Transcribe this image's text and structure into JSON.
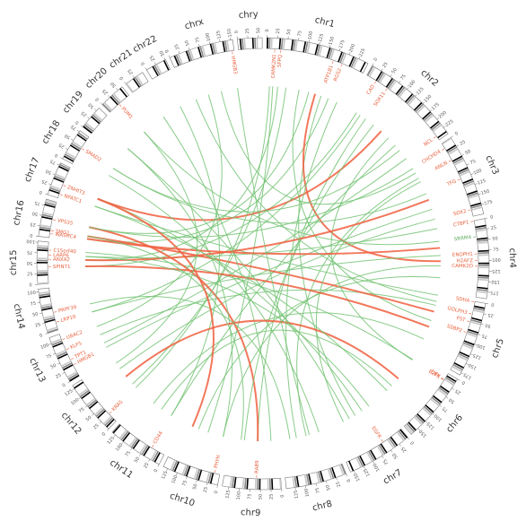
{
  "chart_data": {
    "type": "circos",
    "chromosomes": [
      {
        "name": "chr1",
        "length": 249,
        "ticks": [
          0,
          25,
          50,
          75,
          100,
          125,
          150,
          175,
          200,
          225
        ]
      },
      {
        "name": "chr2",
        "length": 243,
        "ticks": [
          0,
          25,
          50,
          75,
          100,
          125,
          150,
          175,
          200,
          225
        ]
      },
      {
        "name": "chr3",
        "length": 198,
        "ticks": [
          0,
          25,
          50,
          75,
          100,
          125,
          150,
          175
        ]
      },
      {
        "name": "chr4",
        "length": 191,
        "ticks": [
          0,
          25,
          50,
          75,
          100,
          125,
          150,
          175
        ]
      },
      {
        "name": "chr5",
        "length": 181,
        "ticks": [
          0,
          25,
          50,
          75,
          100,
          125,
          150,
          175
        ]
      },
      {
        "name": "chr6",
        "length": 171,
        "ticks": [
          0,
          25,
          50,
          75,
          100,
          125,
          150
        ]
      },
      {
        "name": "chr7",
        "length": 159,
        "ticks": [
          0,
          25,
          50,
          75,
          100,
          125,
          150
        ]
      },
      {
        "name": "chr8",
        "length": 146,
        "ticks": [
          0,
          25,
          50,
          75,
          100,
          125
        ]
      },
      {
        "name": "chr9",
        "length": 141,
        "ticks": [
          0,
          25,
          50,
          75,
          100,
          125
        ]
      },
      {
        "name": "chr10",
        "length": 136,
        "ticks": [
          0,
          25,
          50,
          75,
          100,
          125
        ]
      },
      {
        "name": "chr11",
        "length": 135,
        "ticks": [
          0,
          25,
          50,
          75,
          100,
          125
        ]
      },
      {
        "name": "chr12",
        "length": 134,
        "ticks": [
          0,
          25,
          50,
          75,
          100,
          125
        ]
      },
      {
        "name": "chr13",
        "length": 115,
        "ticks": [
          0,
          25,
          50,
          75,
          100
        ]
      },
      {
        "name": "chr14",
        "length": 107,
        "ticks": [
          0,
          25,
          50,
          75,
          100
        ]
      },
      {
        "name": "chr15",
        "length": 103,
        "ticks": [
          0,
          25,
          50,
          75,
          100
        ]
      },
      {
        "name": "chr16",
        "length": 90,
        "ticks": [
          0,
          25,
          50,
          75
        ]
      },
      {
        "name": "chr17",
        "length": 81,
        "ticks": [
          0,
          25,
          50,
          75
        ]
      },
      {
        "name": "chr18",
        "length": 78,
        "ticks": [
          0,
          25,
          50,
          75
        ]
      },
      {
        "name": "chr19",
        "length": 59,
        "ticks": [
          0,
          25,
          50
        ]
      },
      {
        "name": "chr20",
        "length": 63,
        "ticks": [
          0,
          25,
          50
        ]
      },
      {
        "name": "chr21",
        "length": 48,
        "ticks": [
          0,
          25
        ]
      },
      {
        "name": "chr22",
        "length": 51,
        "ticks": [
          0,
          25,
          50
        ]
      },
      {
        "name": "chrx",
        "length": 155,
        "ticks": [
          0,
          25,
          50,
          75,
          100,
          125,
          150
        ]
      },
      {
        "name": "chry",
        "length": 59,
        "ticks": [
          0,
          25,
          50
        ]
      }
    ],
    "genes": [
      {
        "label": "CAMK2N1",
        "chr": "chr1",
        "pos": 20,
        "color": "#e8603c"
      },
      {
        "label": "SFPQ",
        "chr": "chr1",
        "pos": 35,
        "color": "#e8603c"
      },
      {
        "label": "ATP1B1",
        "chr": "chr1",
        "pos": 169,
        "color": "#e8603c"
      },
      {
        "label": "RGS2",
        "chr": "chr1",
        "pos": 192,
        "color": "#e8603c"
      },
      {
        "label": "CAD",
        "chr": "chr2",
        "pos": 27,
        "color": "#e8603c"
      },
      {
        "label": "SOX11",
        "chr": "chr2",
        "pos": 60,
        "color": "#e8603c"
      },
      {
        "label": "NCL",
        "chr": "chr2",
        "pos": 232,
        "color": "#e8603c"
      },
      {
        "label": "CHCHD4",
        "chr": "chr3",
        "pos": 14,
        "color": "#e8603c"
      },
      {
        "label": "ANLN",
        "chr": "chr3",
        "pos": 48,
        "color": "#e8603c"
      },
      {
        "label": "TFG",
        "chr": "chr3",
        "pos": 100,
        "color": "#e8603c"
      },
      {
        "label": "SOX2",
        "chr": "chr3",
        "pos": 181,
        "color": "#e8603c"
      },
      {
        "label": "CTBP1",
        "chr": "chr4",
        "pos": 1,
        "color": "#e8603c"
      },
      {
        "label": "SRRM4",
        "chr": "chr4",
        "pos": 40,
        "color": "#5aa55a"
      },
      {
        "label": "ENOPH1",
        "chr": "chr4",
        "pos": 83,
        "color": "#e8603c"
      },
      {
        "label": "H2AFZ",
        "chr": "chr4",
        "pos": 100,
        "color": "#e8603c"
      },
      {
        "label": "CAMK2D",
        "chr": "chr4",
        "pos": 114,
        "color": "#e8603c"
      },
      {
        "label": "SDHA",
        "chr": "chr5",
        "pos": 1,
        "color": "#e8603c"
      },
      {
        "label": "GOLPH3",
        "chr": "chr5",
        "pos": 32,
        "color": "#e8603c"
      },
      {
        "label": "SSBP2",
        "chr": "chr5",
        "pos": 80,
        "color": "#e8603c"
      },
      {
        "label": "FST",
        "chr": "chr5",
        "pos": 52,
        "color": "#e8603c"
      },
      {
        "label": "E2F3",
        "chr": "chr6",
        "pos": 20,
        "color": "#e8603c"
      },
      {
        "label": "DEK",
        "chr": "chr6",
        "pos": 18,
        "color": "#e8603c"
      },
      {
        "label": "EGFR",
        "chr": "chr7",
        "pos": 55,
        "color": "#e8603c"
      },
      {
        "label": "RAB9",
        "chr": "chr9",
        "pos": 60,
        "color": "#e8603c"
      },
      {
        "label": "PHYH",
        "chr": "chr10",
        "pos": 13,
        "color": "#e8603c"
      },
      {
        "label": "CD44",
        "chr": "chr11",
        "pos": 35,
        "color": "#e8603c"
      },
      {
        "label": "KRAS",
        "chr": "chr12",
        "pos": 25,
        "color": "#e8603c"
      },
      {
        "label": "HMGB1",
        "chr": "chr13",
        "pos": 31,
        "color": "#e8603c"
      },
      {
        "label": "TPT1",
        "chr": "chr13",
        "pos": 46,
        "color": "#e8603c"
      },
      {
        "label": "KLF5",
        "chr": "chr13",
        "pos": 73,
        "color": "#e8603c"
      },
      {
        "label": "UBAC2",
        "chr": "chr13",
        "pos": 100,
        "color": "#e8603c"
      },
      {
        "label": "LRP10",
        "chr": "chr14",
        "pos": 20,
        "color": "#e8603c"
      },
      {
        "label": "PRPF39",
        "chr": "chr14",
        "pos": 45,
        "color": "#e8603c"
      },
      {
        "label": "SPINT1",
        "chr": "chr15",
        "pos": 41,
        "color": "#e8603c"
      },
      {
        "label": "ANXA2",
        "chr": "chr15",
        "pos": 60,
        "color": "#e8603c"
      },
      {
        "label": "LARP6",
        "chr": "chr15",
        "pos": 71,
        "color": "#e8603c"
      },
      {
        "label": "C15orf40",
        "chr": "chr15",
        "pos": 83,
        "color": "#e8603c"
      },
      {
        "label": "WASHC4",
        "chr": "chr16",
        "pos": 10,
        "color": "#e8603c"
      },
      {
        "label": "SMG1",
        "chr": "chr16",
        "pos": 18,
        "color": "#e8603c"
      },
      {
        "label": "VPS35",
        "chr": "chr16",
        "pos": 46,
        "color": "#e8603c"
      },
      {
        "label": "NFATC1",
        "chr": "chr17",
        "pos": 10,
        "color": "#e8603c"
      },
      {
        "label": "ZNHIT3",
        "chr": "chr17",
        "pos": 34,
        "color": "#e8603c"
      },
      {
        "label": "SMAD2",
        "chr": "chr18",
        "pos": 45,
        "color": "#e8603c"
      },
      {
        "label": "PUM1",
        "chr": "chr20",
        "pos": 30,
        "color": "#e8603c"
      },
      {
        "label": "HMGB3",
        "chr": "chrx",
        "pos": 150,
        "color": "#e8603c"
      }
    ],
    "links": [
      {
        "from": [
          "chr1",
          20
        ],
        "to": [
          "chr10",
          60
        ],
        "color": "#74c374"
      },
      {
        "from": [
          "chr1",
          35
        ],
        "to": [
          "chr15",
          60
        ],
        "color": "#74c374"
      },
      {
        "from": [
          "chr1",
          169
        ],
        "to": [
          "chr7",
          80
        ],
        "color": "#74c374"
      },
      {
        "from": [
          "chr1",
          192
        ],
        "to": [
          "chr16",
          10
        ],
        "color": "#74c374"
      },
      {
        "from": [
          "chr1",
          150
        ],
        "to": [
          "chr4",
          100
        ],
        "color": "#f06040"
      },
      {
        "from": [
          "chr1",
          60
        ],
        "to": [
          "chr12",
          40
        ],
        "color": "#74c374"
      },
      {
        "from": [
          "chr2",
          27
        ],
        "to": [
          "chr15",
          41
        ],
        "color": "#74c374"
      },
      {
        "from": [
          "chr2",
          60
        ],
        "to": [
          "chr9",
          60
        ],
        "color": "#74c374"
      },
      {
        "from": [
          "chr2",
          232
        ],
        "to": [
          "chr13",
          46
        ],
        "color": "#74c374"
      },
      {
        "from": [
          "chr2",
          120
        ],
        "to": [
          "chr17",
          34
        ],
        "color": "#f06040"
      },
      {
        "from": [
          "chr2",
          180
        ],
        "to": [
          "chr11",
          35
        ],
        "color": "#74c374"
      },
      {
        "from": [
          "chr3",
          14
        ],
        "to": [
          "chr16",
          46
        ],
        "color": "#74c374"
      },
      {
        "from": [
          "chr3",
          48
        ],
        "to": [
          "chr8",
          70
        ],
        "color": "#74c374"
      },
      {
        "from": [
          "chr3",
          100
        ],
        "to": [
          "chr18",
          45
        ],
        "color": "#74c374"
      },
      {
        "from": [
          "chr3",
          181
        ],
        "to": [
          "chr12",
          100
        ],
        "color": "#74c374"
      },
      {
        "from": [
          "chr4",
          1
        ],
        "to": [
          "chr15",
          71
        ],
        "color": "#74c374"
      },
      {
        "from": [
          "chr4",
          40
        ],
        "to": [
          "chr20",
          30
        ],
        "color": "#74c374"
      },
      {
        "from": [
          "chr4",
          83
        ],
        "to": [
          "chr14",
          20
        ],
        "color": "#74c374"
      },
      {
        "from": [
          "chr4",
          114
        ],
        "to": [
          "chr10",
          13
        ],
        "color": "#74c374"
      },
      {
        "from": [
          "chr5",
          1
        ],
        "to": [
          "chr17",
          10
        ],
        "color": "#74c374"
      },
      {
        "from": [
          "chr5",
          32
        ],
        "to": [
          "chr13",
          73
        ],
        "color": "#74c374"
      },
      {
        "from": [
          "chr5",
          80
        ],
        "to": [
          "chr1",
          100
        ],
        "color": "#74c374"
      },
      {
        "from": [
          "chr5",
          52
        ],
        "to": [
          "chr16",
          18
        ],
        "color": "#f06040"
      },
      {
        "from": [
          "chr6",
          20
        ],
        "to": [
          "chr2",
          150
        ],
        "color": "#74c374"
      },
      {
        "from": [
          "chr6",
          18
        ],
        "to": [
          "chr15",
          83
        ],
        "color": "#74c374"
      },
      {
        "from": [
          "chr6",
          120
        ],
        "to": [
          "chr11",
          70
        ],
        "color": "#74c374"
      },
      {
        "from": [
          "chr7",
          55
        ],
        "to": [
          "chr17",
          34
        ],
        "color": "#74c374"
      },
      {
        "from": [
          "chr7",
          120
        ],
        "to": [
          "chr3",
          60
        ],
        "color": "#74c374"
      },
      {
        "from": [
          "chr8",
          30
        ],
        "to": [
          "chr18",
          20
        ],
        "color": "#74c374"
      },
      {
        "from": [
          "chr8",
          100
        ],
        "to": [
          "chr1",
          220
        ],
        "color": "#74c374"
      },
      {
        "from": [
          "chr9",
          60
        ],
        "to": [
          "chr16",
          46
        ],
        "color": "#f06040"
      },
      {
        "from": [
          "chr9",
          100
        ],
        "to": [
          "chr2",
          90
        ],
        "color": "#74c374"
      },
      {
        "from": [
          "chr9",
          20
        ],
        "to": [
          "chr21",
          30
        ],
        "color": "#74c374"
      },
      {
        "from": [
          "chr10",
          13
        ],
        "to": [
          "chr19",
          30
        ],
        "color": "#74c374"
      },
      {
        "from": [
          "chr10",
          90
        ],
        "to": [
          "chr4",
          150
        ],
        "color": "#74c374"
      },
      {
        "from": [
          "chr11",
          35
        ],
        "to": [
          "chr22",
          30
        ],
        "color": "#74c374"
      },
      {
        "from": [
          "chr11",
          100
        ],
        "to": [
          "chr5",
          140
        ],
        "color": "#74c374"
      },
      {
        "from": [
          "chr12",
          25
        ],
        "to": [
          "chr1",
          10
        ],
        "color": "#74c374"
      },
      {
        "from": [
          "chr12",
          70
        ],
        "to": [
          "chr6",
          90
        ],
        "color": "#f06040"
      },
      {
        "from": [
          "chr13",
          31
        ],
        "to": [
          "chr3",
          150
        ],
        "color": "#74c374"
      },
      {
        "from": [
          "chr13",
          100
        ],
        "to": [
          "chrx",
          60
        ],
        "color": "#74c374"
      },
      {
        "from": [
          "chr14",
          20
        ],
        "to": [
          "chr2",
          40
        ],
        "color": "#74c374"
      },
      {
        "from": [
          "chr14",
          45
        ],
        "to": [
          "chr8",
          120
        ],
        "color": "#74c374"
      },
      {
        "from": [
          "chr15",
          41
        ],
        "to": [
          "chr5",
          100
        ],
        "color": "#f06040"
      },
      {
        "from": [
          "chr15",
          60
        ],
        "to": [
          "chr3",
          120
        ],
        "color": "#f06040"
      },
      {
        "from": [
          "chr15",
          71
        ],
        "to": [
          "chr7",
          30
        ],
        "color": "#74c374"
      },
      {
        "from": [
          "chr16",
          10
        ],
        "to": [
          "chr4",
          60
        ],
        "color": "#f06040"
      },
      {
        "from": [
          "chr16",
          18
        ],
        "to": [
          "chr9",
          110
        ],
        "color": "#74c374"
      },
      {
        "from": [
          "chr16",
          46
        ],
        "to": [
          "chr1",
          130
        ],
        "color": "#74c374"
      },
      {
        "from": [
          "chr17",
          10
        ],
        "to": [
          "chr6",
          140
        ],
        "color": "#74c374"
      },
      {
        "from": [
          "chr17",
          34
        ],
        "to": [
          "chr10",
          110
        ],
        "color": "#f06040"
      },
      {
        "from": [
          "chr18",
          45
        ],
        "to": [
          "chr2",
          200
        ],
        "color": "#74c374"
      },
      {
        "from": [
          "chr19",
          30
        ],
        "to": [
          "chr7",
          100
        ],
        "color": "#74c374"
      },
      {
        "from": [
          "chr20",
          30
        ],
        "to": [
          "chr12",
          120
        ],
        "color": "#74c374"
      },
      {
        "from": [
          "chrx",
          20
        ],
        "to": [
          "chr5",
          20
        ],
        "color": "#74c374"
      },
      {
        "from": [
          "chrx",
          150
        ],
        "to": [
          "chr8",
          60
        ],
        "color": "#74c374"
      },
      {
        "from": [
          "chrx",
          100
        ],
        "to": [
          "chr3",
          30
        ],
        "color": "#74c374"
      }
    ]
  }
}
